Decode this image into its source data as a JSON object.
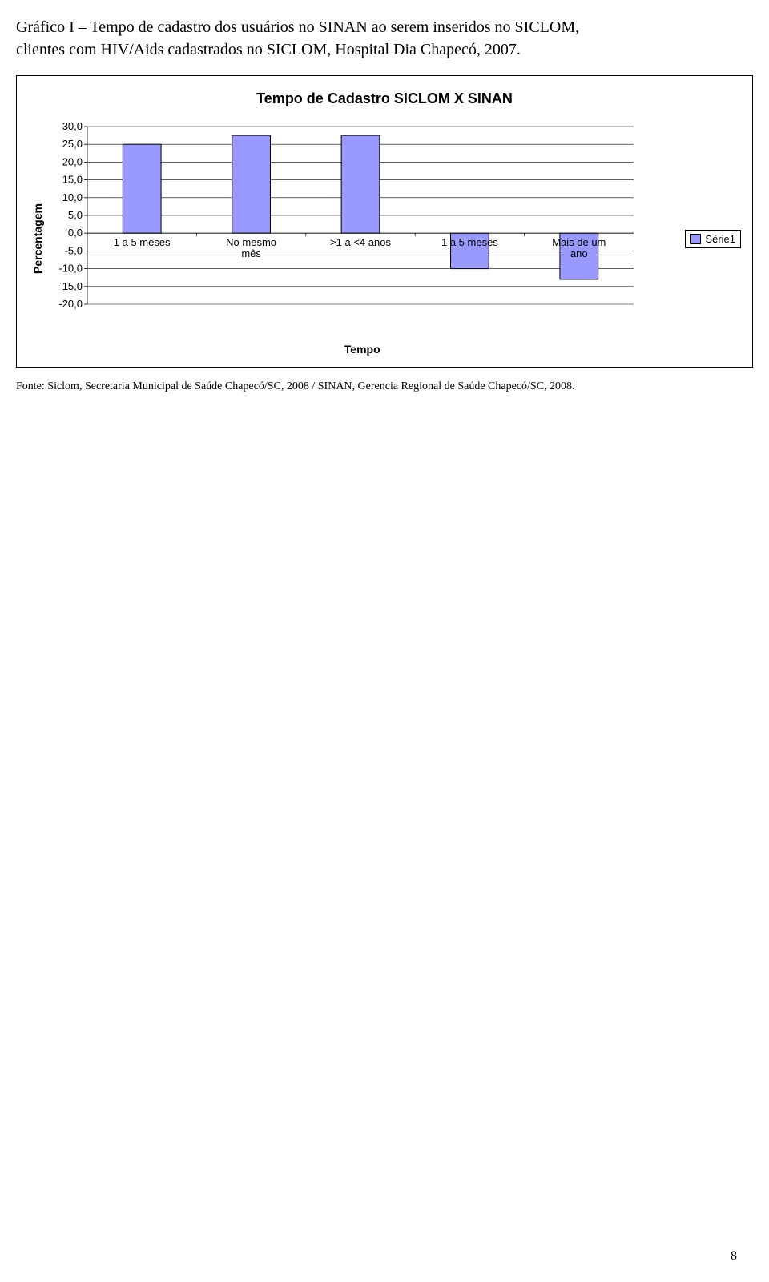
{
  "caption_line1": "Gráfico I – Tempo de cadastro dos usuários no SINAN ao serem inseridos no SICLOM,",
  "caption_line2": "clientes com HIV/Aids cadastrados no SICLOM, Hospital Dia Chapecó, 2007.",
  "chart": {
    "type": "bar",
    "title": "Tempo de Cadastro SICLOM X SINAN",
    "ylabel": "Percentagem",
    "xlabel": "Tempo",
    "categories": [
      "1 a 5 meses",
      "No mesmo mês",
      ">1 a <4 anos",
      "1 a 5 meses",
      "Mais de um ano"
    ],
    "values": [
      25.0,
      27.5,
      27.5,
      -10.0,
      -13.0
    ],
    "ylim": [
      -20.0,
      30.0
    ],
    "ytick_step": 5.0,
    "yticks": [
      "30,0",
      "25,0",
      "20,0",
      "15,0",
      "10,0",
      "5,0",
      "0,0",
      "-5,0",
      "-10,0",
      "-15,0",
      "-20,0"
    ],
    "bar_fill": "#9999ff",
    "bar_stroke": "#000000",
    "plot_bg": "#ffffff",
    "grid_color": "#000000",
    "tick_font_size": 13,
    "cat_font_size": 13,
    "bar_width_ratio": 0.35,
    "legend_label": "Série1",
    "legend_swatch_color": "#9999ff"
  },
  "source_text": "Fonte: Siclom, Secretaria Municipal de Saúde Chapecó/SC, 2008 / SINAN, Gerencia Regional de Saúde Chapecó/SC, 2008.",
  "page_number": "8"
}
